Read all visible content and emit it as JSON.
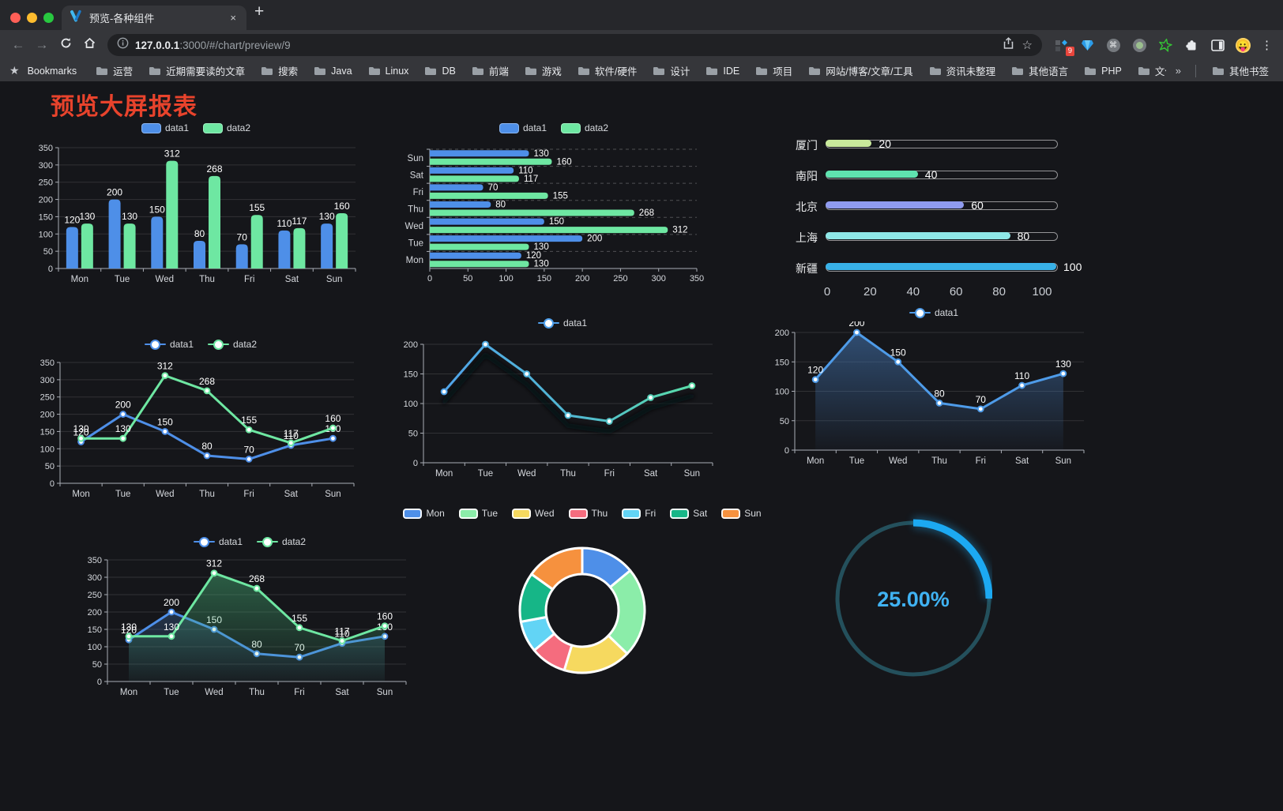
{
  "browser": {
    "window_controls": {
      "close_color": "#FF5F57",
      "minimize_color": "#FEBC2E",
      "zoom_color": "#28C840"
    },
    "tab": {
      "title": "预览-各种组件",
      "close_glyph": "×",
      "new_tab_glyph": "+"
    },
    "toolbar": {
      "url_host": "127.0.0.1",
      "url_rest": ":3000/#/chart/preview/9",
      "extension_badge": "9"
    },
    "bookmarks": {
      "label": "Bookmarks",
      "folders": [
        "运营",
        "近期需要读的文章",
        "搜索",
        "Java",
        "Linux",
        "DB",
        "前端",
        "游戏",
        "软件/硬件",
        "设计",
        "IDE",
        "项目",
        "网站/博客/文章/工具",
        "资讯未整理",
        "其他语言",
        "PHP",
        "文件服务器"
      ],
      "overflow_glyph": "»",
      "other_label": "其他书签"
    }
  },
  "page": {
    "title": "预览大屏报表",
    "title_color": "#E8432C",
    "background": "#15161A"
  },
  "chart_data": [
    {
      "id": "bar-vertical",
      "type": "bar",
      "categories": [
        "Mon",
        "Tue",
        "Wed",
        "Thu",
        "Fri",
        "Sat",
        "Sun"
      ],
      "series": [
        {
          "name": "data1",
          "color": "#4E8FE8",
          "values": [
            120,
            200,
            150,
            80,
            70,
            110,
            130
          ]
        },
        {
          "name": "data2",
          "color": "#6EE7A2",
          "values": [
            130,
            130,
            312,
            268,
            155,
            117,
            160
          ]
        }
      ],
      "ylim": [
        0,
        350
      ],
      "ytick_step": 50,
      "grid": true,
      "value_labels": true,
      "legend_position": "top"
    },
    {
      "id": "bar-horizontal",
      "type": "bar",
      "orientation": "horizontal",
      "category_order_displayed": [
        "Sun",
        "Sat",
        "Fri",
        "Thu",
        "Wed",
        "Tue",
        "Mon"
      ],
      "categories": [
        "Mon",
        "Tue",
        "Wed",
        "Thu",
        "Fri",
        "Sat",
        "Sun"
      ],
      "series": [
        {
          "name": "data1",
          "color": "#4E8FE8",
          "values": [
            120,
            200,
            150,
            80,
            70,
            110,
            130
          ]
        },
        {
          "name": "data2",
          "color": "#6EE7A2",
          "values": [
            130,
            130,
            312,
            268,
            155,
            117,
            160
          ]
        }
      ],
      "xlim": [
        0,
        350
      ],
      "xtick_step": 50,
      "value_labels": true,
      "legend_position": "top"
    },
    {
      "id": "city-progress",
      "type": "bar",
      "subtype": "progress-pills",
      "xlim": [
        0,
        100
      ],
      "xticks": [
        0,
        20,
        40,
        60,
        80,
        100
      ],
      "rows": [
        {
          "label": "厦门",
          "value": 20,
          "color": "#C9E99B"
        },
        {
          "label": "南阳",
          "value": 40,
          "color": "#5FE3B0"
        },
        {
          "label": "北京",
          "value": 60,
          "color": "#8F9BEF"
        },
        {
          "label": "上海",
          "value": 80,
          "color": "#8EE7E7"
        },
        {
          "label": "新疆",
          "value": 100,
          "color": "#38B1E8"
        }
      ]
    },
    {
      "id": "line-two",
      "type": "line",
      "categories": [
        "Mon",
        "Tue",
        "Wed",
        "Thu",
        "Fri",
        "Sat",
        "Sun"
      ],
      "series": [
        {
          "name": "data1",
          "color": "#4E8FE8",
          "values": [
            120,
            200,
            150,
            80,
            70,
            110,
            130
          ]
        },
        {
          "name": "data2",
          "color": "#6EE7A2",
          "values": [
            130,
            130,
            312,
            268,
            155,
            117,
            160
          ]
        }
      ],
      "ylim": [
        0,
        350
      ],
      "ytick_step": 50,
      "grid": true,
      "value_labels": true,
      "markers": true,
      "legend_position": "top"
    },
    {
      "id": "line-gradient",
      "type": "line",
      "subtype": "gradient-stroke-with-shadow",
      "categories": [
        "Mon",
        "Tue",
        "Wed",
        "Thu",
        "Fri",
        "Sat",
        "Sun"
      ],
      "series": [
        {
          "name": "data1",
          "gradient": [
            "#4FA0EC",
            "#5BE3A0"
          ],
          "values": [
            120,
            200,
            150,
            80,
            70,
            110,
            130
          ]
        }
      ],
      "ylim": [
        0,
        200
      ],
      "ytick_step": 50,
      "grid": true,
      "value_labels": false,
      "markers": true,
      "legend_position": "top"
    },
    {
      "id": "area-single",
      "type": "area",
      "categories": [
        "Mon",
        "Tue",
        "Wed",
        "Thu",
        "Fri",
        "Sat",
        "Sun"
      ],
      "series": [
        {
          "name": "data1",
          "color": "#4E9BE8",
          "values": [
            120,
            200,
            150,
            80,
            70,
            110,
            130
          ]
        }
      ],
      "ylim": [
        0,
        200
      ],
      "ytick_step": 50,
      "grid": true,
      "value_labels": true,
      "markers": true,
      "legend_position": "top"
    },
    {
      "id": "area-two",
      "type": "area",
      "categories": [
        "Mon",
        "Tue",
        "Wed",
        "Thu",
        "Fri",
        "Sat",
        "Sun"
      ],
      "series": [
        {
          "name": "data1",
          "color": "#4E8FE8",
          "values": [
            120,
            200,
            150,
            80,
            70,
            110,
            130
          ]
        },
        {
          "name": "data2",
          "color": "#6EE7A2",
          "values": [
            130,
            130,
            312,
            268,
            155,
            117,
            160
          ]
        }
      ],
      "ylim": [
        0,
        350
      ],
      "ytick_step": 50,
      "grid": true,
      "value_labels": true,
      "markers": true,
      "legend_position": "top"
    },
    {
      "id": "donut",
      "type": "pie",
      "subtype": "donut-rounded",
      "legend_position": "top",
      "items": [
        {
          "label": "Mon",
          "value": 120,
          "color": "#4E8FE8"
        },
        {
          "label": "Tue",
          "value": 200,
          "color": "#8BEDA9"
        },
        {
          "label": "Wed",
          "value": 150,
          "color": "#F6D95F"
        },
        {
          "label": "Thu",
          "value": 80,
          "color": "#F56C7E"
        },
        {
          "label": "Fri",
          "value": 70,
          "color": "#62D4F5"
        },
        {
          "label": "Sat",
          "value": 110,
          "color": "#16B687"
        },
        {
          "label": "Sun",
          "value": 130,
          "color": "#F6913E"
        }
      ]
    },
    {
      "id": "gauge",
      "type": "gauge",
      "value": 25,
      "display": "25.00%",
      "arc_color": "#1CA9F2",
      "track_color": "#24505C",
      "text_color": "#40B2F2"
    }
  ]
}
